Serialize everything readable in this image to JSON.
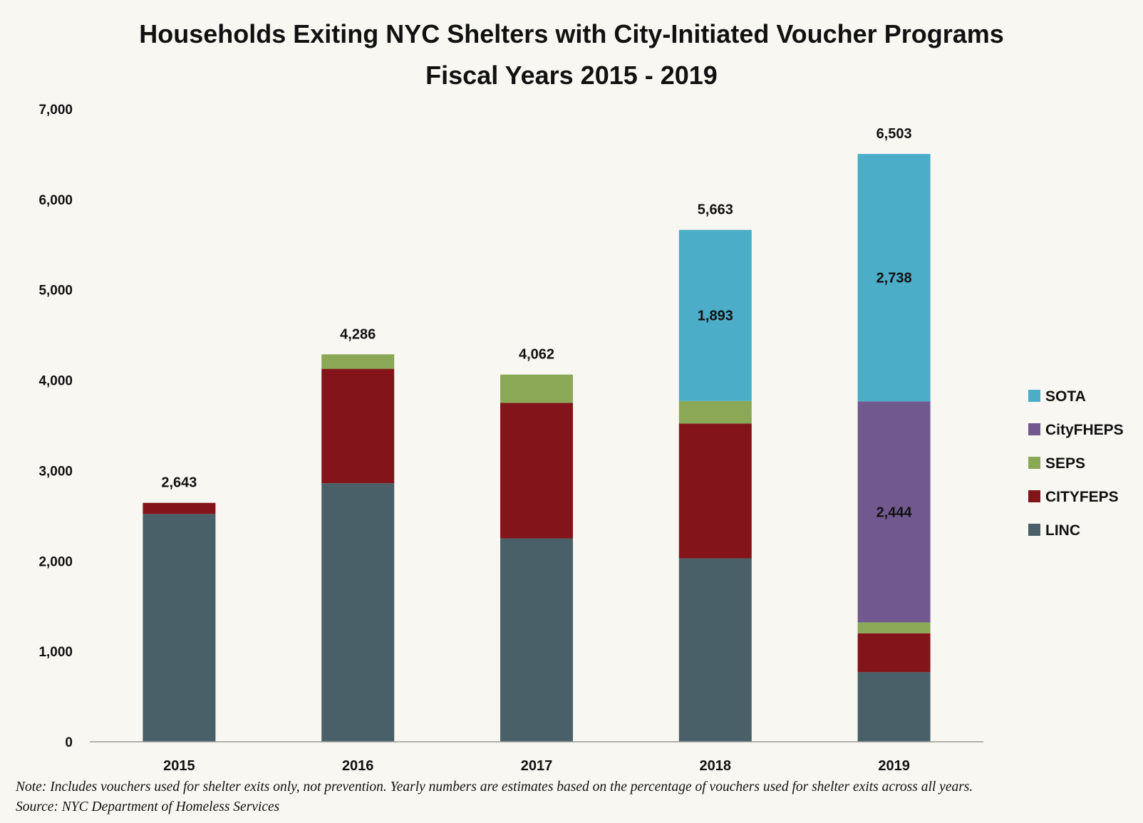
{
  "chart_data": {
    "type": "bar",
    "stacked": true,
    "title": "Households Exiting NYC Shelters with City-Initiated Voucher Programs",
    "subtitle": "Fiscal Years 2015 - 2019",
    "xlabel": "",
    "ylabel": "",
    "ylim": [
      0,
      7000
    ],
    "yticks": [
      0,
      1000,
      2000,
      3000,
      4000,
      5000,
      6000,
      7000
    ],
    "ytick_labels": [
      "0",
      "1,000",
      "2,000",
      "3,000",
      "4,000",
      "5,000",
      "6,000",
      "7,000"
    ],
    "categories": [
      "2015",
      "2016",
      "2017",
      "2018",
      "2019"
    ],
    "series": [
      {
        "name": "LINC",
        "color": "#4a6068",
        "values": [
          2520,
          2860,
          2250,
          2030,
          770
        ]
      },
      {
        "name": "CITYFEPS",
        "color": "#83151a",
        "values": [
          123,
          1266,
          1500,
          1490,
          430
        ]
      },
      {
        "name": "SEPS",
        "color": "#8aa856",
        "values": [
          0,
          160,
          312,
          250,
          121
        ]
      },
      {
        "name": "CityFHEPS",
        "color": "#71598f",
        "values": [
          0,
          0,
          0,
          0,
          2444
        ]
      },
      {
        "name": "SOTA",
        "color": "#4badc8",
        "values": [
          0,
          0,
          0,
          1893,
          2738
        ]
      }
    ],
    "totals": [
      2643,
      4286,
      4062,
      5663,
      6503
    ],
    "total_labels": [
      "2,643",
      "4,286",
      "4,062",
      "5,663",
      "6,503"
    ],
    "segment_labels": [
      {
        "category": "2018",
        "series": "SOTA",
        "text": "1,893"
      },
      {
        "category": "2019",
        "series": "CityFHEPS",
        "text": "2,444"
      },
      {
        "category": "2019",
        "series": "SOTA",
        "text": "2,738"
      }
    ],
    "legend_order": [
      "SOTA",
      "CityFHEPS",
      "SEPS",
      "CITYFEPS",
      "LINC"
    ],
    "legend_position": "right",
    "grid": false
  },
  "notes": {
    "line1": "Note: Includes vouchers used for shelter exits only, not prevention. Yearly numbers are estimates based on the percentage of  vouchers used for shelter exits across all years.",
    "line2": "Source: NYC Department of Homeless Services"
  }
}
